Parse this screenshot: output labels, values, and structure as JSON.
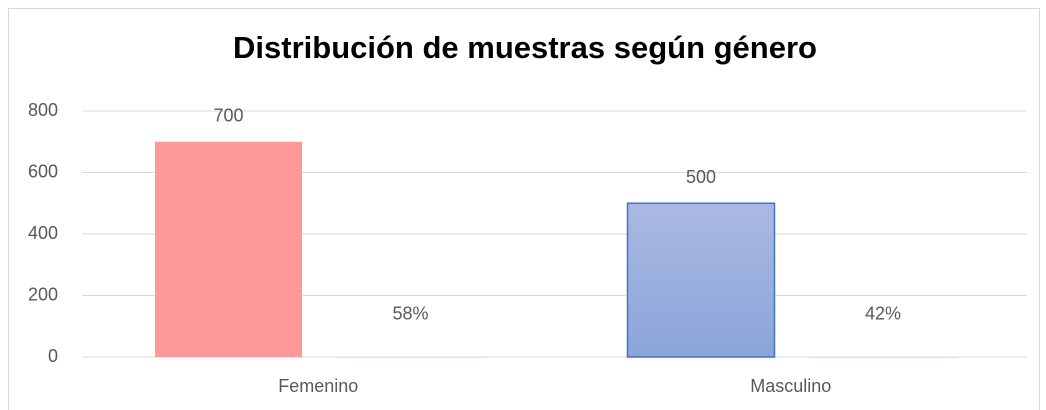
{
  "chart_data": {
    "type": "bar",
    "title": "Distribución de muestras según género",
    "categories": [
      "Femenino",
      "Masculino"
    ],
    "series": [
      {
        "colors": [
          "#ff9999",
          "#8faadc"
        ],
        "values": [
          700,
          500
        ]
      },
      {
        "color": "#f2e4d6",
        "values": [
          0.58,
          0.42
        ],
        "value_labels": [
          "58%",
          "42%"
        ]
      }
    ],
    "ylim": [
      0,
      800
    ],
    "yticks": [
      0,
      200,
      400,
      600,
      800
    ],
    "grid": true
  }
}
